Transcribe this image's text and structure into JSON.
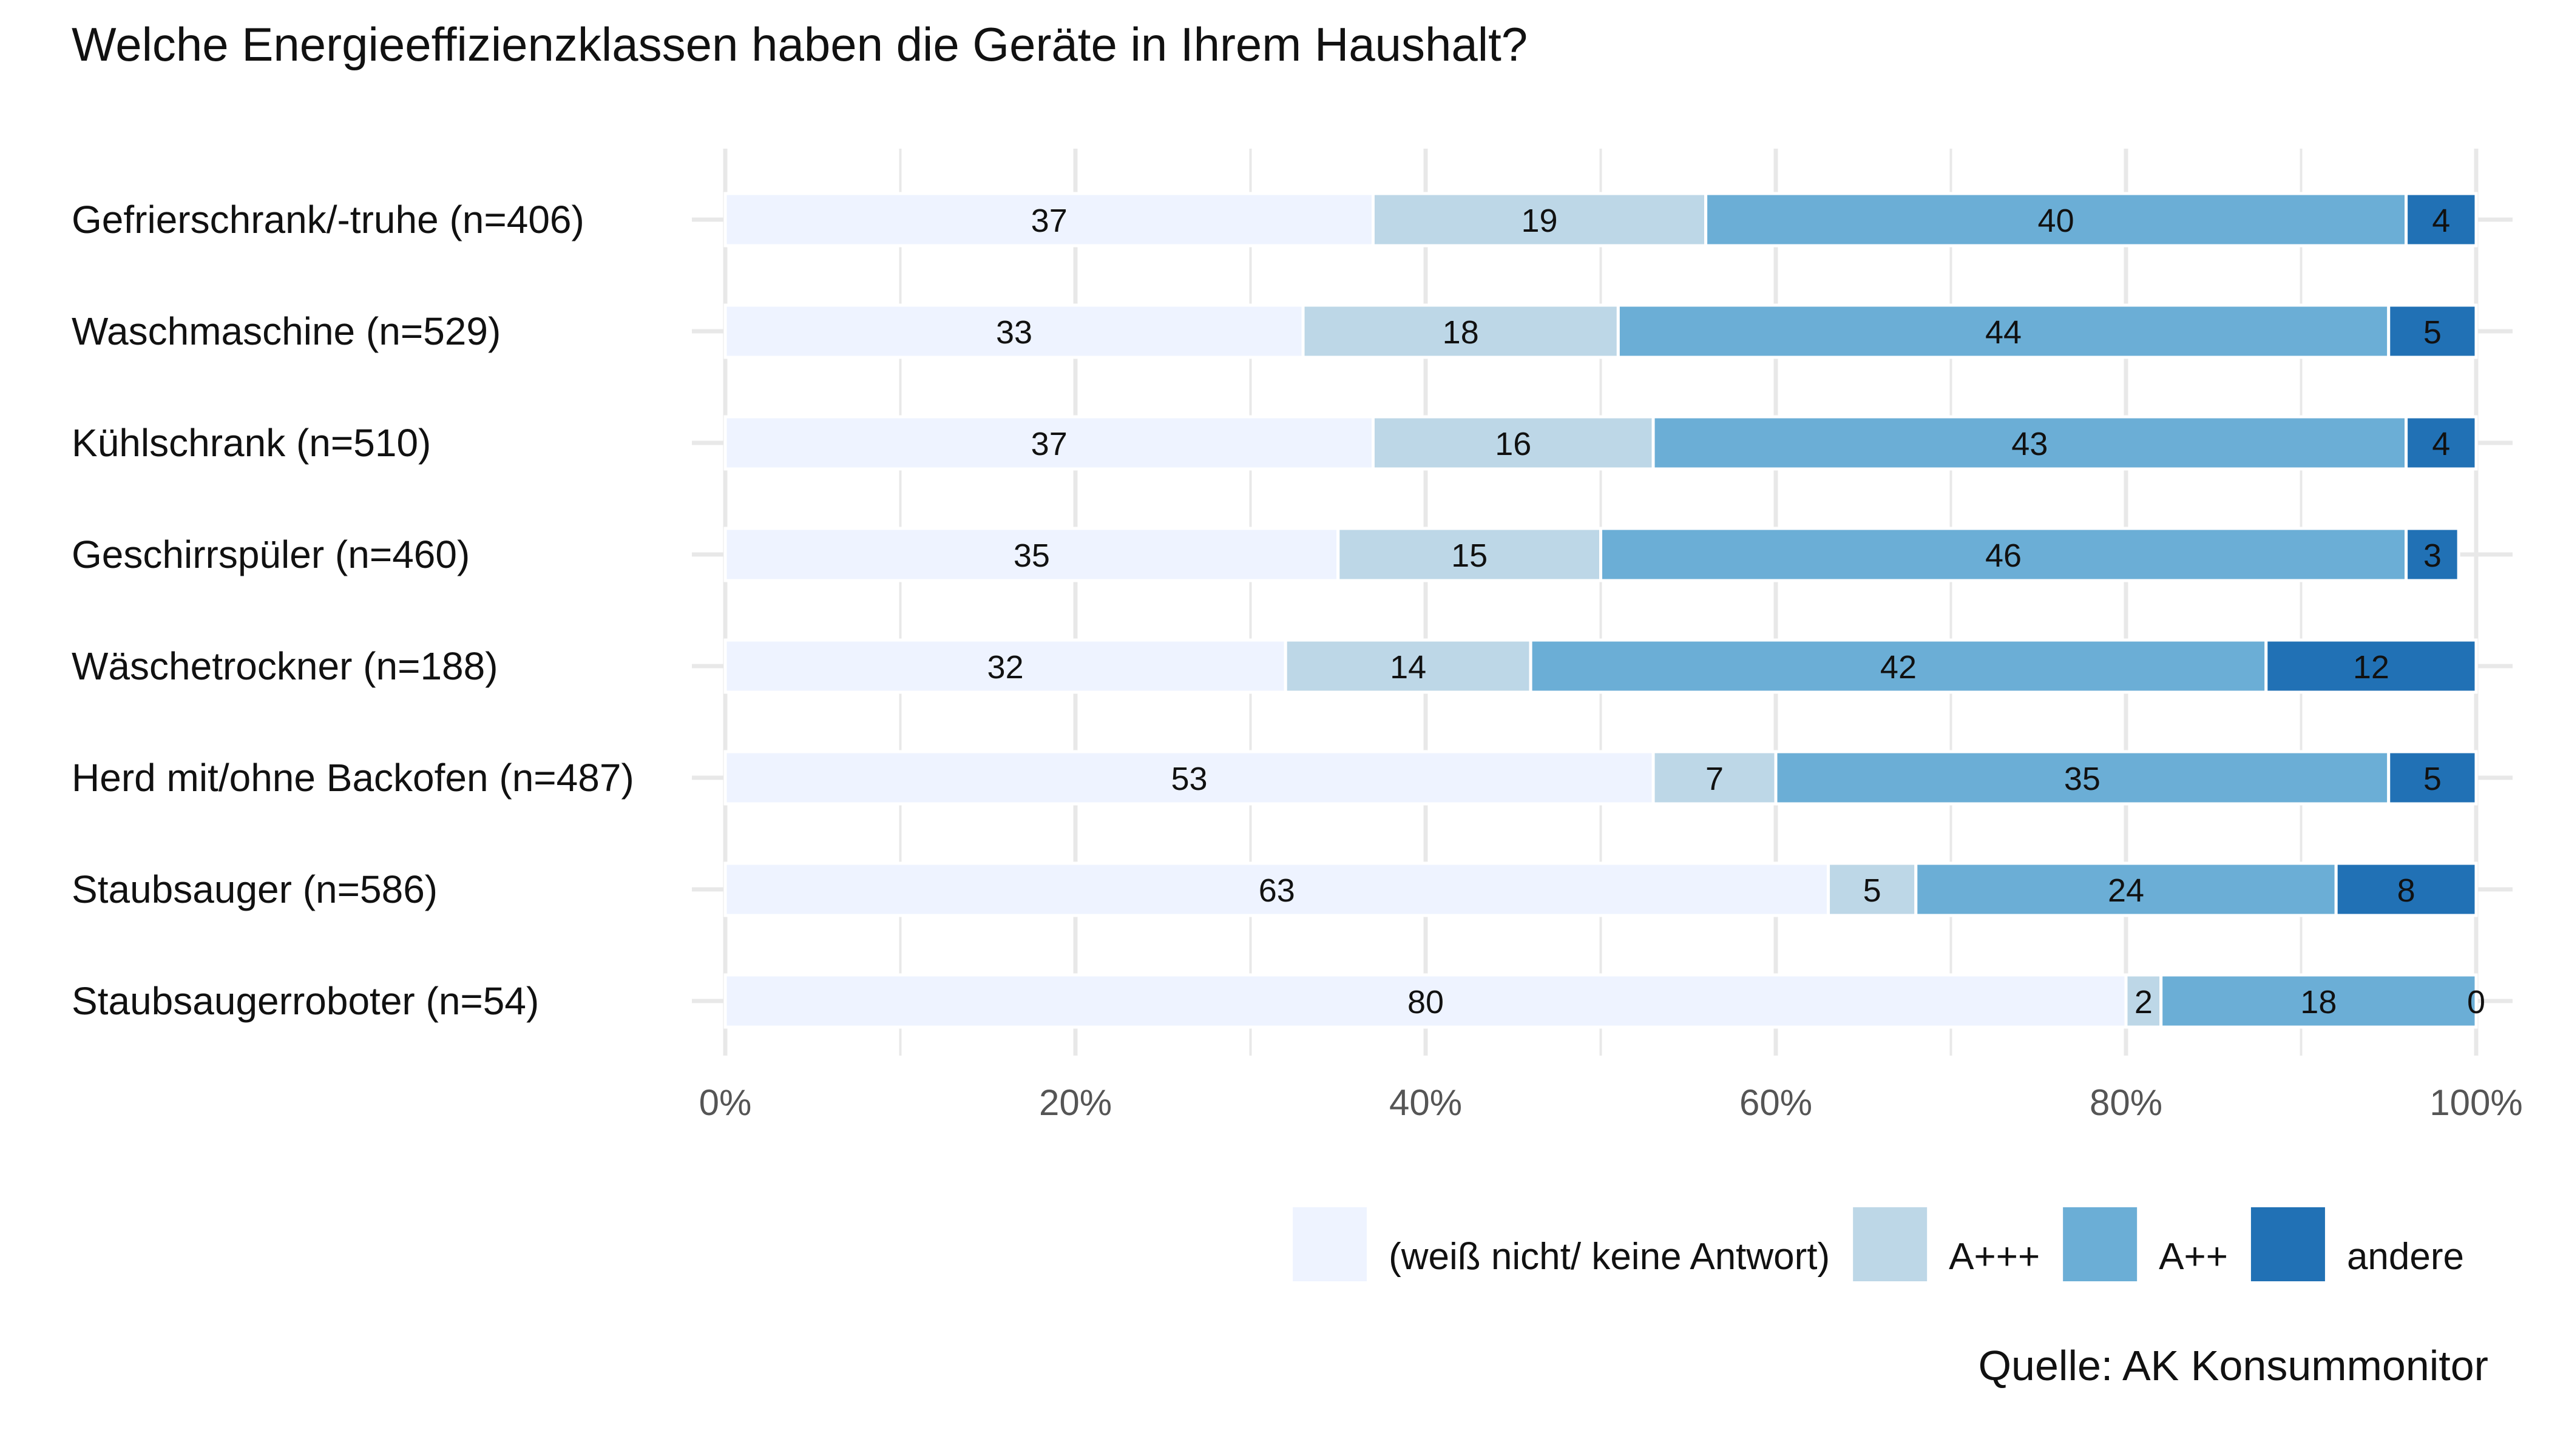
{
  "chart_data": {
    "type": "bar",
    "orientation": "horizontal-stacked-100",
    "title": "Welche Energieeffizienzklassen haben die Geräte in Ihrem Haushalt?",
    "categories": [
      "Gefrierschrank/-truhe (n=406)",
      "Waschmaschine (n=529)",
      "Kühlschrank (n=510)",
      "Geschirrspüler (n=460)",
      "Wäschetrockner (n=188)",
      "Herd mit/ohne Backofen (n=487)",
      "Staubsauger (n=586)",
      "Staubsaugerroboter (n=54)"
    ],
    "series": [
      {
        "name": "(weiß nicht/ keine Antwort)",
        "color": "#EEF3FF",
        "values": [
          37,
          33,
          37,
          35,
          32,
          53,
          63,
          80
        ]
      },
      {
        "name": "A+++",
        "color": "#BDD7E7",
        "values": [
          19,
          18,
          16,
          15,
          14,
          7,
          5,
          2
        ]
      },
      {
        "name": "A++",
        "color": "#6BAED6",
        "values": [
          40,
          44,
          43,
          46,
          42,
          35,
          24,
          18
        ]
      },
      {
        "name": "andere",
        "color": "#2171B5",
        "values": [
          4,
          5,
          4,
          3,
          12,
          5,
          8,
          0
        ]
      }
    ],
    "x_ticks": [
      "0%",
      "20%",
      "40%",
      "60%",
      "80%",
      "100%"
    ],
    "xlim": [
      0,
      100
    ],
    "grid": true,
    "legend_position": "bottom-right",
    "caption": "Quelle: AK Konsummonitor"
  }
}
